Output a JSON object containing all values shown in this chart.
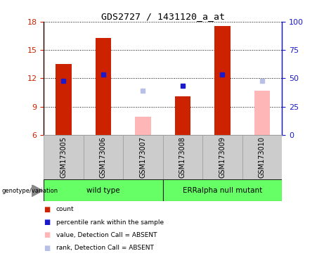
{
  "title": "GDS2727 / 1431120_a_at",
  "samples": [
    "GSM173005",
    "GSM173006",
    "GSM173007",
    "GSM173008",
    "GSM173009",
    "GSM173010"
  ],
  "ylim_left": [
    6,
    18
  ],
  "ylim_right": [
    0,
    100
  ],
  "yticks_left": [
    6,
    9,
    12,
    15,
    18
  ],
  "yticks_right": [
    0,
    25,
    50,
    75,
    100
  ],
  "count_values": [
    13.5,
    16.3,
    null,
    10.1,
    17.5,
    null
  ],
  "rank_values": [
    11.7,
    12.4,
    null,
    11.2,
    12.4,
    null
  ],
  "absent_value_values": [
    null,
    null,
    7.9,
    null,
    null,
    10.7
  ],
  "absent_rank_values": [
    null,
    null,
    10.7,
    null,
    null,
    11.7
  ],
  "count_color": "#cc2200",
  "rank_color": "#1a1acc",
  "absent_value_color": "#ffb6b6",
  "absent_rank_color": "#b8c0e8",
  "bar_bottom": 6,
  "left_axis_color": "#cc2200",
  "right_axis_color": "#1a1acc",
  "bg_plot": "#ffffff",
  "bg_label": "#cccccc",
  "bg_group": "#66ff66",
  "legend_items": [
    "count",
    "percentile rank within the sample",
    "value, Detection Call = ABSENT",
    "rank, Detection Call = ABSENT"
  ],
  "legend_colors": [
    "#cc2200",
    "#1a1acc",
    "#ffb6b6",
    "#b8c0e8"
  ],
  "group_configs": [
    [
      0,
      3,
      "wild type"
    ],
    [
      3,
      6,
      "ERRalpha null mutant"
    ]
  ],
  "bar_width": 0.4
}
